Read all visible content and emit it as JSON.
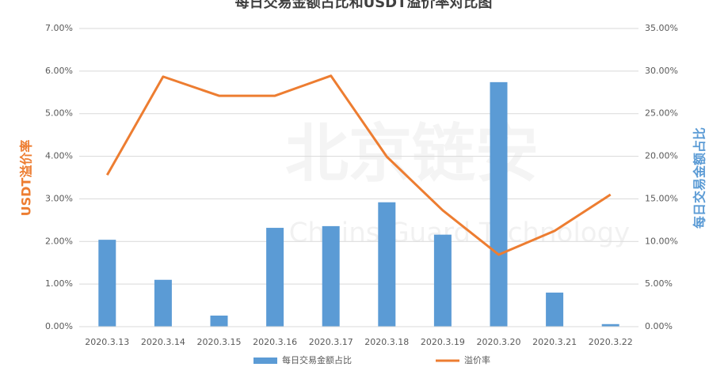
{
  "chart_data": {
    "type": "bar_line",
    "title": "每日交易金额占比和USDT溢价率对比图",
    "watermark": "北京链安",
    "watermark_subtitle": "Chains Guard Technology",
    "y_label": "USDT溢价率",
    "y2_label": "每日交易金额占比",
    "categories": [
      "2020.3.13",
      "2020.3.14",
      "2020.3.15",
      "2020.3.16",
      "2020.3.17",
      "2020.3.18",
      "2020.3.19",
      "2020.3.20",
      "2020.3.21",
      "2020.3.22"
    ],
    "series": [
      {
        "name": "每日交易金额占比",
        "type": "bar",
        "axis": "y2",
        "color": "#5b9bd5",
        "values": [
          10.2,
          5.5,
          1.3,
          11.6,
          11.8,
          14.6,
          10.8,
          28.7,
          4.0,
          0.3
        ]
      },
      {
        "name": "溢价率",
        "type": "line",
        "axis": "y",
        "color": "#ed7d31",
        "values": [
          3.56,
          5.87,
          5.42,
          5.42,
          5.89,
          3.99,
          2.73,
          1.69,
          2.25,
          3.1
        ]
      }
    ],
    "ylim": [
      0,
      7
    ],
    "yticks": [
      {
        "value": 0,
        "label": "0.00%"
      },
      {
        "value": 1,
        "label": "1.00%"
      },
      {
        "value": 2,
        "label": "2.00%"
      },
      {
        "value": 3,
        "label": "3.00%"
      },
      {
        "value": 4,
        "label": "4.00%"
      },
      {
        "value": 5,
        "label": "5.00%"
      },
      {
        "value": 6,
        "label": "6.00%"
      },
      {
        "value": 7,
        "label": "7.00%"
      }
    ],
    "y2lim": [
      0,
      35
    ],
    "y2ticks": [
      {
        "value": 0,
        "label": "0.00%"
      },
      {
        "value": 5,
        "label": "5.00%"
      },
      {
        "value": 10,
        "label": "10.00%"
      },
      {
        "value": 15,
        "label": "15.00%"
      },
      {
        "value": 20,
        "label": "20.00%"
      },
      {
        "value": 25,
        "label": "25.00%"
      },
      {
        "value": 30,
        "label": "30.00%"
      },
      {
        "value": 35,
        "label": "35.00%"
      }
    ],
    "grid": true,
    "legend": "bottom"
  }
}
